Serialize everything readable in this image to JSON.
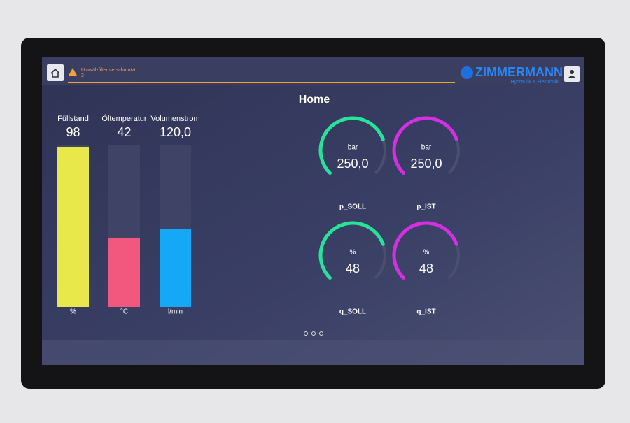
{
  "header": {
    "alarm_text": "Umwälzfilter verschmutzt",
    "alarm_count": "3",
    "logo": "ZIMMERMANN",
    "logo_sub": "Hydraulik & Elektronik"
  },
  "title": "Home",
  "bars": [
    {
      "label": "Füllstand",
      "value": "98",
      "unit": "%"
    },
    {
      "label": "Öltemperatur",
      "value": "42",
      "unit": "°C"
    },
    {
      "label": "Volumenstrom",
      "value": "120,0",
      "unit": "l/min"
    }
  ],
  "gauges": [
    {
      "unit": "bar",
      "value": "250,0",
      "label": "p_SOLL"
    },
    {
      "unit": "bar",
      "value": "250,0",
      "label": "p_IST"
    },
    {
      "unit": "%",
      "value": "48",
      "label": "q_SOLL"
    },
    {
      "unit": "%",
      "value": "48",
      "label": "q_IST"
    }
  ]
}
